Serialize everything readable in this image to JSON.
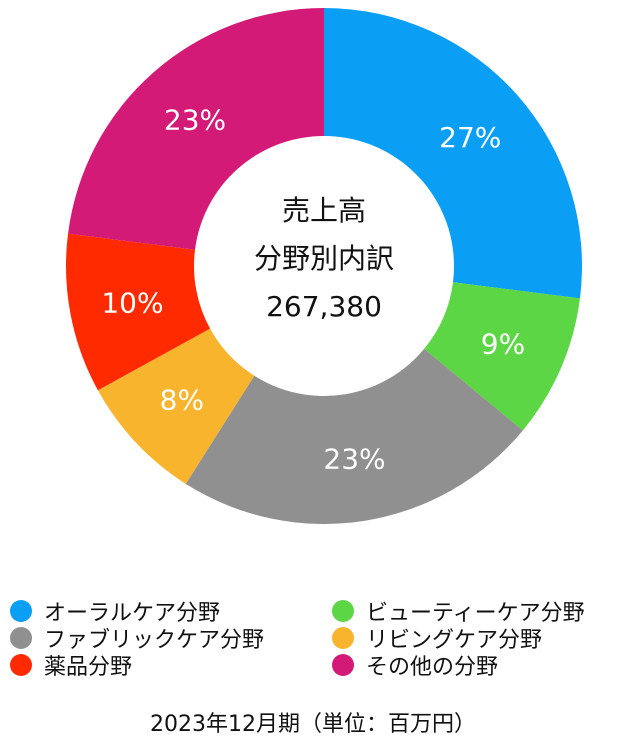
{
  "chart_data": {
    "type": "pie",
    "style": "donut",
    "center_text": [
      "売上高",
      "分野別内訳",
      "267,380"
    ],
    "series": [
      {
        "name": "オーラルケア分野",
        "value": 27,
        "label": "27%",
        "color": "#0a9ff5"
      },
      {
        "name": "ビューティーケア分野",
        "value": 9,
        "label": "9%",
        "color": "#5dd645"
      },
      {
        "name": "ファブリックケア分野",
        "value": 23,
        "label": "23%",
        "color": "#909090"
      },
      {
        "name": "リビングケア分野",
        "value": 8,
        "label": "8%",
        "color": "#f7b42c"
      },
      {
        "name": "薬品分野",
        "value": 10,
        "label": "10%",
        "color": "#ff2a00"
      },
      {
        "name": "その他の分野",
        "value": 23,
        "label": "23%",
        "color": "#d31a76"
      }
    ],
    "legend_position": "bottom",
    "legend_order": [
      0,
      1,
      2,
      3,
      4,
      5
    ]
  },
  "footer": "2023年12月期（単位：百万円）"
}
